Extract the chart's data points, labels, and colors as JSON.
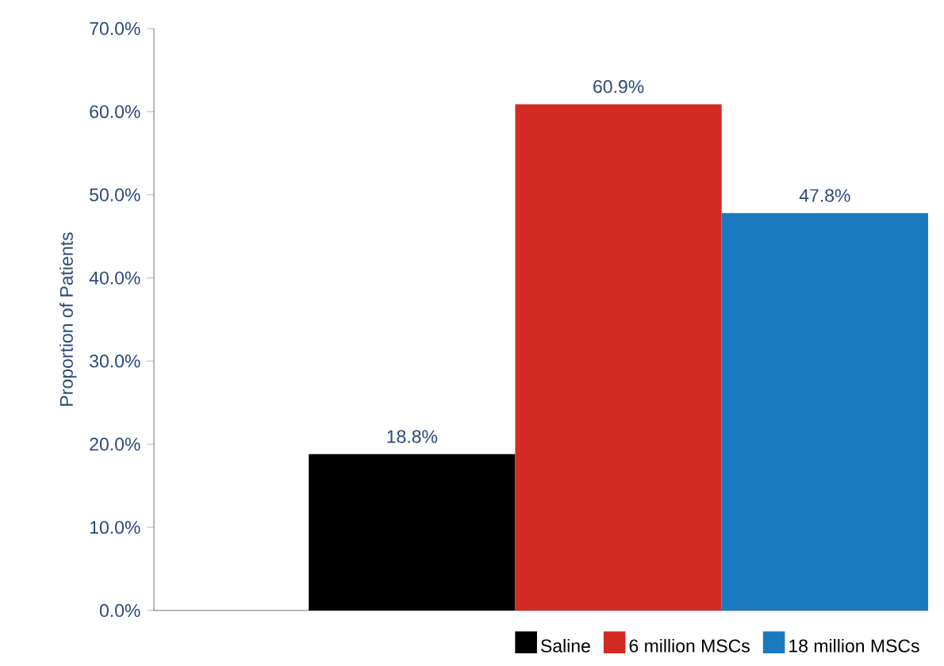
{
  "chart_data": {
    "type": "bar",
    "ylabel": "Proportion of Patients",
    "categories": [
      null
    ],
    "series": [
      {
        "name": "Saline",
        "color": "#000000",
        "values": [
          18.8
        ],
        "value_labels": [
          "18.8%"
        ]
      },
      {
        "name": "6 million MSCs",
        "color": "#d42a24",
        "values": [
          60.9
        ],
        "value_labels": [
          "60.9%"
        ]
      },
      {
        "name": "18 million MSCs",
        "color": "#1a7abf",
        "values": [
          47.8
        ],
        "value_labels": [
          "47.8%"
        ]
      }
    ],
    "ylim": [
      0,
      70
    ],
    "yticks": [
      {
        "value": 0,
        "label": "0.0%"
      },
      {
        "value": 10,
        "label": "10.0%"
      },
      {
        "value": 20,
        "label": "20.0%"
      },
      {
        "value": 30,
        "label": "30.0%"
      },
      {
        "value": 40,
        "label": "40.0%"
      },
      {
        "value": 50,
        "label": "50.0%"
      },
      {
        "value": 60,
        "label": "60.0%"
      },
      {
        "value": 70,
        "label": "70.0%"
      }
    ],
    "grid": false,
    "legend": "bottom"
  }
}
